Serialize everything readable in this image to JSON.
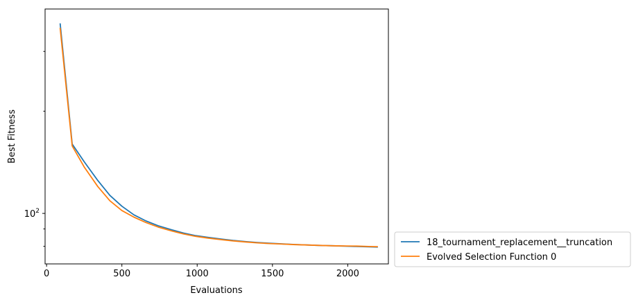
{
  "chart_data": {
    "type": "line",
    "title": "",
    "xlabel": "Evaluations",
    "ylabel": "Best Fitness",
    "y_scale": "log",
    "xlim": [
      -10,
      2270
    ],
    "ylim": [
      71,
      400
    ],
    "x_ticks": [
      0,
      500,
      1000,
      1500,
      2000
    ],
    "y_tick_labels": [
      {
        "value": 100,
        "base": "10",
        "exp": "2"
      }
    ],
    "grid": false,
    "legend_position": "outside-lower-right",
    "series": [
      {
        "name": "18_tournament_replacement__truncation",
        "color": "#1f77b4",
        "x": [
          90,
          170,
          250,
          340,
          420,
          500,
          580,
          660,
          740,
          830,
          910,
          990,
          1070,
          1160,
          1240,
          1320,
          1400,
          1480,
          1570,
          1650,
          1730,
          1810,
          1900,
          1980,
          2060,
          2140,
          2200
        ],
        "y": [
          363,
          160,
          142,
          125,
          113,
          105,
          99,
          95,
          92,
          89.5,
          87.5,
          86,
          85,
          84,
          83.2,
          82.6,
          82.1,
          81.7,
          81.3,
          81,
          80.7,
          80.5,
          80.3,
          80.1,
          79.9,
          79.7,
          79.6
        ]
      },
      {
        "name": "Evolved Selection Function 0",
        "color": "#ff7f0e",
        "x": [
          90,
          170,
          250,
          340,
          420,
          500,
          580,
          660,
          740,
          830,
          910,
          990,
          1070,
          1160,
          1240,
          1320,
          1400,
          1480,
          1570,
          1650,
          1730,
          1810,
          1900,
          1980,
          2060,
          2140,
          2200
        ],
        "y": [
          352,
          158,
          137,
          120,
          109,
          102,
          97.5,
          94,
          91.2,
          88.8,
          87,
          85.6,
          84.6,
          83.7,
          83,
          82.4,
          81.9,
          81.5,
          81.2,
          80.9,
          80.7,
          80.5,
          80.3,
          80.2,
          80.1,
          79.9,
          79.8
        ]
      }
    ]
  }
}
